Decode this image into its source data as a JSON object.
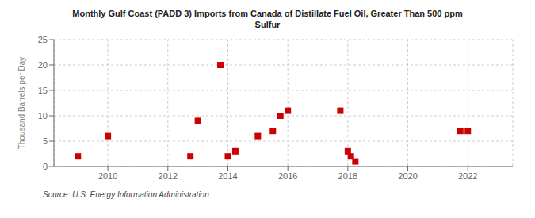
{
  "chart_data": {
    "type": "scatter",
    "title": "Monthly Gulf Coast (PADD 3) Imports from Canada of Distillate Fuel Oil, Greater Than 500 ppm\nSulfur",
    "ylabel": "Thousand Barrels per Day",
    "annotations": [
      "Source: U.S. Energy Information Administration"
    ],
    "x": [
      2009.0,
      2010.0,
      2012.75,
      2013.0,
      2013.75,
      2014.0,
      2014.25,
      2015.0,
      2015.5,
      2015.75,
      2016.0,
      2017.75,
      2018.0,
      2018.1,
      2018.25,
      2021.75,
      2022.0
    ],
    "values": [
      2,
      6,
      2,
      9,
      20,
      2,
      3,
      6,
      7,
      10,
      11,
      11,
      3,
      2,
      1,
      7,
      7
    ],
    "color": "#cc0000",
    "marker": "square",
    "xlim": [
      2008.2,
      2023.5
    ],
    "ylim": [
      0,
      25
    ],
    "xticks": [
      2010,
      2012,
      2014,
      2016,
      2018,
      2020,
      2022
    ],
    "yticks": [
      0,
      5,
      10,
      15,
      20,
      25
    ],
    "grid": true
  }
}
